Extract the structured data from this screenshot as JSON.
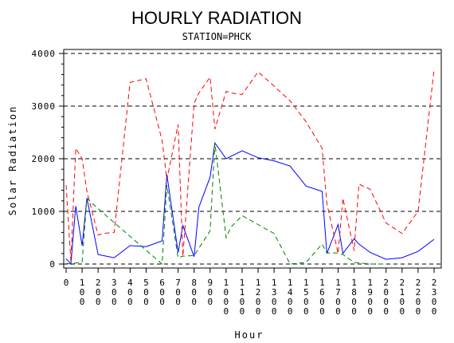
{
  "chart_data": {
    "type": "line",
    "title": "HOURLY RADIATION",
    "subtitle": "STATION=PHCK",
    "xlabel": "Hour",
    "ylabel": "Solar Radiation",
    "ylim": [
      0,
      4000
    ],
    "yticks": [
      "0",
      "1000",
      "2000",
      "3000",
      "4000"
    ],
    "xlim": [
      0,
      2300
    ],
    "xticks": [
      "0",
      "100",
      "200",
      "300",
      "400",
      "500",
      "600",
      "700",
      "800",
      "900",
      "1000",
      "1100",
      "1200",
      "1300",
      "1400",
      "1500",
      "1600",
      "1700",
      "1800",
      "1900",
      "2000",
      "2100",
      "2200",
      "2300"
    ],
    "grid": "horizontal-dashed",
    "series": [
      {
        "color": "#0000ff",
        "dash": "solid",
        "x": [
          0,
          30,
          60,
          100,
          130,
          200,
          300,
          400,
          500,
          600,
          630,
          700,
          730,
          800,
          830,
          900,
          930,
          1000,
          1100,
          1200,
          1300,
          1400,
          1500,
          1600,
          1630,
          1700,
          1730,
          1800,
          1830,
          1900,
          2000,
          2100,
          2200,
          2300
        ],
        "y": [
          100,
          0,
          1100,
          350,
          1250,
          180,
          120,
          350,
          330,
          440,
          1700,
          220,
          730,
          140,
          1080,
          1650,
          2300,
          2000,
          2150,
          2020,
          1960,
          1860,
          1480,
          1380,
          200,
          750,
          200,
          480,
          380,
          220,
          90,
          120,
          240,
          470
        ]
      },
      {
        "color": "#ff0000",
        "dash": "dashed",
        "x": [
          0,
          30,
          60,
          100,
          130,
          200,
          230,
          300,
          400,
          500,
          600,
          630,
          700,
          730,
          800,
          830,
          900,
          930,
          1000,
          1030,
          1100,
          1200,
          1300,
          1400,
          1500,
          1600,
          1630,
          1700,
          1730,
          1800,
          1830,
          1900,
          2000,
          2100,
          2200,
          2300
        ],
        "y": [
          1500,
          50,
          2200,
          2000,
          1380,
          550,
          580,
          600,
          3450,
          3520,
          2350,
          1600,
          2650,
          150,
          3050,
          3250,
          3550,
          2560,
          3280,
          3250,
          3220,
          3650,
          3380,
          3100,
          2700,
          2200,
          1150,
          200,
          1250,
          250,
          1520,
          1420,
          780,
          580,
          1000,
          3700
        ]
      },
      {
        "color": "#008000",
        "dash": "dashed",
        "x": [
          0,
          30,
          60,
          100,
          130,
          200,
          600,
          630,
          700,
          730,
          800,
          900,
          930,
          1000,
          1030,
          1100,
          1200,
          1300,
          1400,
          1500,
          1600,
          1630,
          1700,
          1730,
          1800,
          1900,
          2000
        ],
        "y": [
          10,
          0,
          20,
          40,
          1250,
          1050,
          0,
          1500,
          120,
          150,
          160,
          630,
          2300,
          500,
          700,
          920,
          750,
          580,
          0,
          30,
          380,
          210,
          210,
          180,
          30,
          0,
          0
        ]
      }
    ]
  }
}
